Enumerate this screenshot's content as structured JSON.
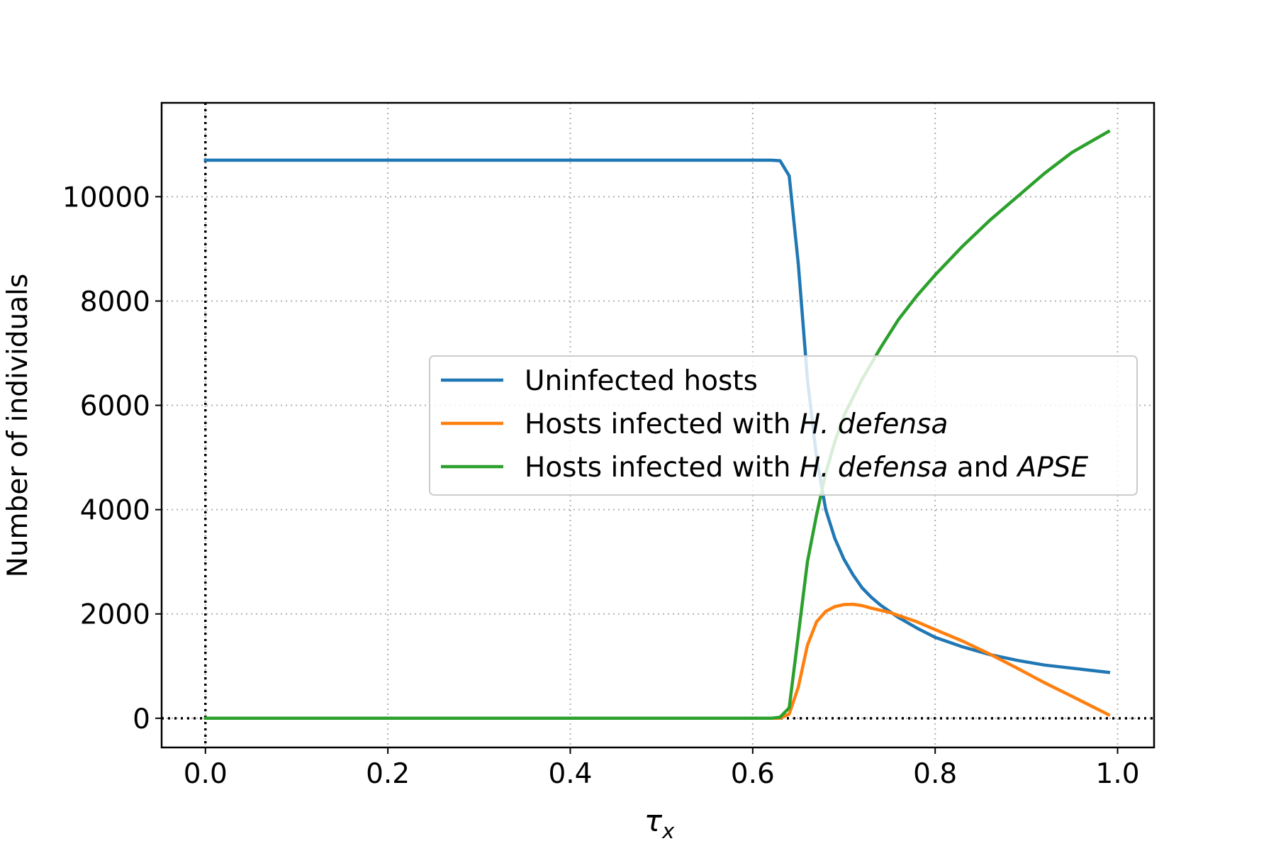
{
  "chart_data": {
    "type": "line",
    "title": "",
    "xlabel": "τ",
    "xlabel_subscript": "x",
    "ylabel": "Number of individuals",
    "xlim": [
      -0.048,
      1.04
    ],
    "ylim": [
      -560,
      11800
    ],
    "xticks": [
      0.0,
      0.2,
      0.4,
      0.6,
      0.8,
      1.0
    ],
    "xtick_labels": [
      "0.0",
      "0.2",
      "0.4",
      "0.6",
      "0.8",
      "1.0"
    ],
    "yticks": [
      0,
      2000,
      4000,
      6000,
      8000,
      10000
    ],
    "ytick_labels": [
      "0",
      "2000",
      "4000",
      "6000",
      "8000",
      "10000"
    ],
    "grid": true,
    "reference_lines": [
      {
        "orientation": "vertical",
        "value": 0,
        "style": "dotted",
        "color": "#000000"
      },
      {
        "orientation": "horizontal",
        "value": 0,
        "style": "dotted",
        "color": "#000000"
      }
    ],
    "legend": {
      "placement": "center-right",
      "entries": [
        {
          "series": 0,
          "parts": [
            {
              "text": "Uninfected hosts",
              "italic": false
            }
          ]
        },
        {
          "series": 1,
          "parts": [
            {
              "text": "Hosts infected with ",
              "italic": false
            },
            {
              "text": "H. defensa",
              "italic": true
            }
          ]
        },
        {
          "series": 2,
          "parts": [
            {
              "text": "Hosts infected with ",
              "italic": false
            },
            {
              "text": "H. defensa",
              "italic": true
            },
            {
              "text": " and ",
              "italic": false
            },
            {
              "text": "APSE",
              "italic": true
            }
          ]
        }
      ]
    },
    "series": [
      {
        "color": "#1f77b4",
        "x": [
          0.0,
          0.1,
          0.2,
          0.3,
          0.4,
          0.5,
          0.6,
          0.62,
          0.63,
          0.64,
          0.65,
          0.66,
          0.67,
          0.68,
          0.69,
          0.7,
          0.71,
          0.72,
          0.73,
          0.74,
          0.75,
          0.76,
          0.78,
          0.8,
          0.83,
          0.86,
          0.89,
          0.92,
          0.95,
          0.99
        ],
        "y": [
          10700,
          10700,
          10700,
          10700,
          10700,
          10700,
          10700,
          10700,
          10690,
          10400,
          8700,
          6500,
          5000,
          4000,
          3450,
          3050,
          2750,
          2500,
          2320,
          2170,
          2050,
          1930,
          1730,
          1550,
          1370,
          1220,
          1110,
          1020,
          960,
          880
        ]
      },
      {
        "color": "#ff7f0e",
        "x": [
          0.0,
          0.1,
          0.2,
          0.3,
          0.4,
          0.5,
          0.6,
          0.63,
          0.64,
          0.65,
          0.66,
          0.67,
          0.68,
          0.69,
          0.7,
          0.71,
          0.72,
          0.73,
          0.74,
          0.75,
          0.78,
          0.8,
          0.83,
          0.86,
          0.89,
          0.92,
          0.95,
          0.99
        ],
        "y": [
          0,
          0,
          0,
          0,
          0,
          0,
          0,
          0,
          80,
          600,
          1400,
          1850,
          2050,
          2140,
          2180,
          2185,
          2160,
          2110,
          2070,
          2030,
          1850,
          1700,
          1480,
          1230,
          960,
          680,
          420,
          70
        ]
      },
      {
        "color": "#2ca02c",
        "x": [
          0.0,
          0.1,
          0.2,
          0.3,
          0.4,
          0.5,
          0.6,
          0.62,
          0.63,
          0.64,
          0.65,
          0.66,
          0.67,
          0.68,
          0.69,
          0.7,
          0.72,
          0.74,
          0.76,
          0.78,
          0.8,
          0.83,
          0.86,
          0.89,
          0.92,
          0.95,
          0.99
        ],
        "y": [
          0,
          0,
          0,
          0,
          0,
          0,
          0,
          0,
          20,
          200,
          1600,
          3000,
          3900,
          4700,
          5300,
          5800,
          6500,
          7100,
          7650,
          8100,
          8500,
          9050,
          9550,
          10000,
          10450,
          10850,
          11250
        ]
      }
    ]
  }
}
